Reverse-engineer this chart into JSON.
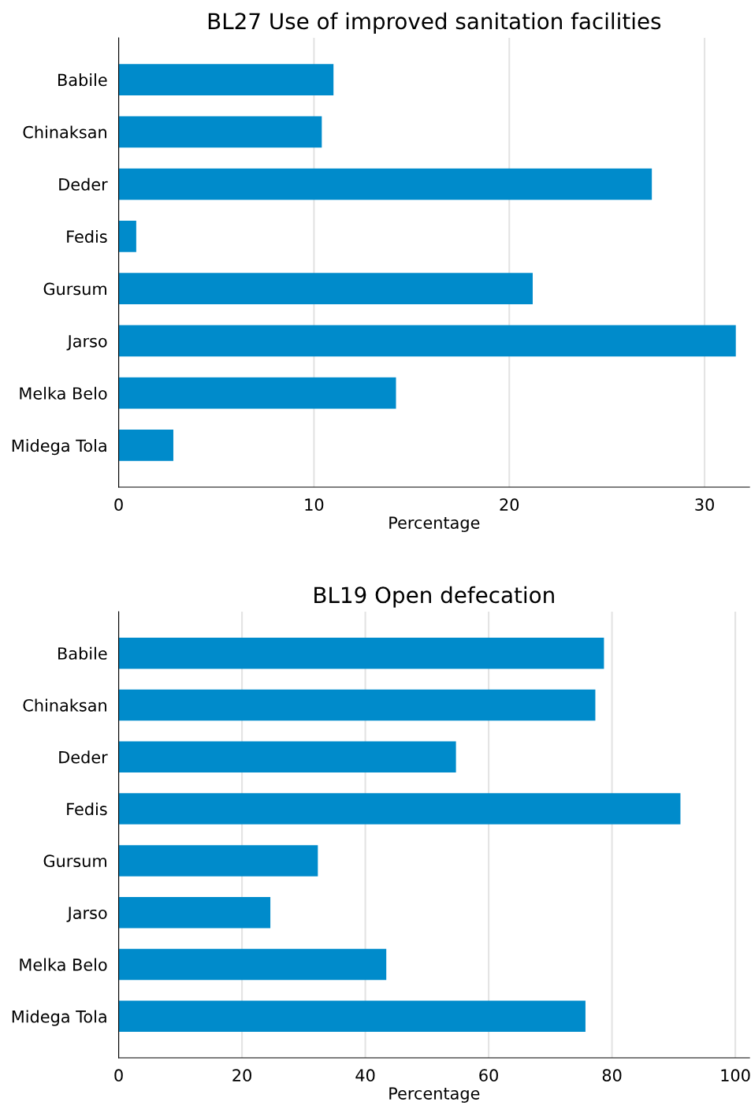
{
  "chart_data": [
    {
      "type": "bar",
      "orientation": "horizontal",
      "title": "BL27 Use of improved sanitation facilities",
      "xlabel": "Percentage",
      "categories": [
        "Babile",
        "Chinaksan",
        "Deder",
        "Fedis",
        "Gursum",
        "Jarso",
        "Melka Belo",
        "Midega Tola"
      ],
      "values": [
        11.0,
        10.4,
        27.3,
        0.9,
        21.2,
        31.6,
        14.2,
        2.8
      ],
      "color": "#008bcb",
      "xlim": [
        0,
        32.3
      ],
      "xticks": [
        0,
        10,
        20,
        30
      ],
      "grid": "x"
    },
    {
      "type": "bar",
      "orientation": "horizontal",
      "title": "BL19 Open defecation",
      "xlabel": "Percentage",
      "categories": [
        "Babile",
        "Chinaksan",
        "Deder",
        "Fedis",
        "Gursum",
        "Jarso",
        "Melka Belo",
        "Midega Tola"
      ],
      "values": [
        78.7,
        77.3,
        54.7,
        91.1,
        32.3,
        24.6,
        43.4,
        75.7
      ],
      "color": "#008bcb",
      "xlim": [
        0,
        102.3
      ],
      "xticks": [
        0,
        20,
        40,
        60,
        80,
        100
      ],
      "grid": "x"
    }
  ]
}
